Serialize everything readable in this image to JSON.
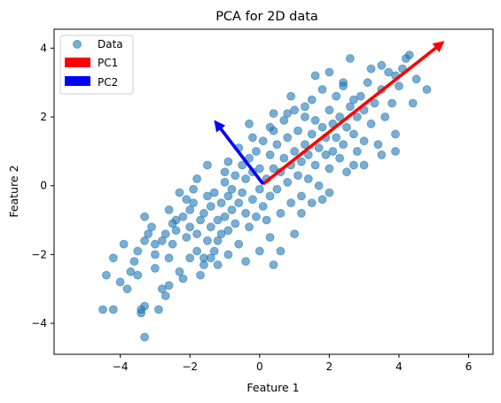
{
  "chart_data": {
    "type": "scatter",
    "title": "PCA for 2D data",
    "xlabel": "Feature 1",
    "ylabel": "Feature 2",
    "xlim": [
      -5.9,
      6.7
    ],
    "ylim": [
      -4.9,
      4.55
    ],
    "xticks": [
      -4,
      -2,
      0,
      2,
      4,
      6
    ],
    "yticks": [
      -4,
      -2,
      0,
      2,
      4
    ],
    "grid": false,
    "legend_position": "top-left",
    "colors": {
      "data": "#1f77b4",
      "pc1": "#ff0000",
      "pc2": "#0000ff"
    },
    "series": [
      {
        "name": "Data",
        "marker": "circle",
        "alpha": 0.6,
        "points": [
          [
            -4.5,
            -3.6
          ],
          [
            -4.2,
            -3.6
          ],
          [
            -4.4,
            -2.6
          ],
          [
            -4.2,
            -2.1
          ],
          [
            -3.9,
            -1.7
          ],
          [
            -3.8,
            -3.0
          ],
          [
            -3.6,
            -2.2
          ],
          [
            -3.5,
            -2.6
          ],
          [
            -3.4,
            -3.6
          ],
          [
            -3.4,
            -3.7
          ],
          [
            -3.3,
            -4.4
          ],
          [
            -3.3,
            -3.5
          ],
          [
            -3.2,
            -1.4
          ],
          [
            -3.3,
            -1.6
          ],
          [
            -3.3,
            -0.9
          ],
          [
            -3.1,
            -1.2
          ],
          [
            -3.0,
            -2.0
          ],
          [
            -2.9,
            -3.6
          ],
          [
            -2.8,
            -1.6
          ],
          [
            -2.8,
            -3.0
          ],
          [
            -2.7,
            -3.2
          ],
          [
            -2.6,
            -2.1
          ],
          [
            -2.5,
            -1.7
          ],
          [
            -2.5,
            -1.1
          ],
          [
            -2.4,
            -1.3
          ],
          [
            -2.3,
            -2.5
          ],
          [
            -2.2,
            -0.9
          ],
          [
            -2.1,
            -1.5
          ],
          [
            -2.0,
            -1.2
          ],
          [
            -2.0,
            -2.1
          ],
          [
            -1.9,
            -0.1
          ],
          [
            -1.9,
            -0.5
          ],
          [
            -1.8,
            -1.4
          ],
          [
            -1.8,
            -1.9
          ],
          [
            -1.7,
            -1.0
          ],
          [
            -1.6,
            -0.8
          ],
          [
            -1.6,
            -2.1
          ],
          [
            -1.5,
            -1.6
          ],
          [
            -1.5,
            -0.3
          ],
          [
            -1.4,
            -1.2
          ],
          [
            -1.4,
            -0.6
          ],
          [
            -1.3,
            -1.9
          ],
          [
            -1.3,
            -0.2
          ],
          [
            -1.2,
            -1.0
          ],
          [
            -1.2,
            -1.6
          ],
          [
            -1.1,
            -0.5
          ],
          [
            -1.1,
            -1.4
          ],
          [
            -1.0,
            0.1
          ],
          [
            -1.0,
            -0.9
          ],
          [
            -0.9,
            -0.3
          ],
          [
            -0.9,
            -1.3
          ],
          [
            -0.8,
            -0.7
          ],
          [
            -0.8,
            -0.1
          ],
          [
            -0.7,
            0.3
          ],
          [
            -0.7,
            -1.1
          ],
          [
            -0.6,
            -0.5
          ],
          [
            -0.6,
            -1.7
          ],
          [
            -0.5,
            0.6
          ],
          [
            -0.5,
            -0.2
          ],
          [
            -0.4,
            -0.8
          ],
          [
            -0.4,
            0.2
          ],
          [
            -0.3,
            -1.2
          ],
          [
            -0.3,
            0.8
          ],
          [
            -0.2,
            -0.4
          ],
          [
            -0.2,
            0.4
          ],
          [
            -0.1,
            -0.9
          ],
          [
            -0.1,
            1.0
          ],
          [
            0.0,
            -0.1
          ],
          [
            0.0,
            0.5
          ],
          [
            0.1,
            -0.6
          ],
          [
            0.1,
            1.3
          ],
          [
            0.2,
            0.2
          ],
          [
            0.2,
            -1.0
          ],
          [
            0.3,
            0.9
          ],
          [
            0.3,
            -0.3
          ],
          [
            0.4,
            0.5
          ],
          [
            0.4,
            1.6
          ],
          [
            0.5,
            -0.1
          ],
          [
            0.5,
            1.2
          ],
          [
            0.6,
            0.4
          ],
          [
            0.6,
            -0.8
          ],
          [
            0.7,
            0.8
          ],
          [
            0.7,
            1.9
          ],
          [
            0.8,
            0.1
          ],
          [
            0.8,
            1.4
          ],
          [
            0.9,
            -0.5
          ],
          [
            0.9,
            0.6
          ],
          [
            1.0,
            1.0
          ],
          [
            1.0,
            2.2
          ],
          [
            1.1,
            0.3
          ],
          [
            1.1,
            1.6
          ],
          [
            1.2,
            0.7
          ],
          [
            1.2,
            -0.3
          ],
          [
            1.3,
            1.2
          ],
          [
            1.3,
            2.0
          ],
          [
            1.4,
            0.9
          ],
          [
            1.4,
            0.2
          ],
          [
            1.5,
            1.5
          ],
          [
            1.5,
            2.5
          ],
          [
            1.6,
            0.6
          ],
          [
            1.6,
            1.9
          ],
          [
            1.7,
            1.1
          ],
          [
            1.7,
            0.0
          ],
          [
            1.8,
            1.7
          ],
          [
            1.8,
            2.8
          ],
          [
            1.9,
            0.9
          ],
          [
            1.9,
            1.4
          ],
          [
            2.0,
            2.2
          ],
          [
            2.0,
            0.5
          ],
          [
            2.1,
            1.8
          ],
          [
            2.1,
            1.0
          ],
          [
            2.2,
            2.6
          ],
          [
            2.2,
            1.4
          ],
          [
            2.3,
            0.8
          ],
          [
            2.3,
            2.0
          ],
          [
            2.4,
            1.2
          ],
          [
            2.4,
            2.9
          ],
          [
            2.5,
            1.7
          ],
          [
            2.5,
            0.4
          ],
          [
            2.6,
            2.3
          ],
          [
            2.6,
            3.7
          ],
          [
            2.7,
            1.5
          ],
          [
            2.7,
            2.5
          ],
          [
            2.8,
            1.0
          ],
          [
            2.8,
            2.0
          ],
          [
            2.9,
            2.6
          ],
          [
            3.0,
            1.3
          ],
          [
            3.0,
            2.2
          ],
          [
            3.1,
            3.0
          ],
          [
            3.2,
            1.8
          ],
          [
            3.3,
            2.4
          ],
          [
            3.4,
            1.2
          ],
          [
            3.5,
            2.8
          ],
          [
            3.6,
            2.0
          ],
          [
            3.7,
            3.3
          ],
          [
            3.8,
            2.4
          ],
          [
            3.9,
            1.5
          ],
          [
            4.0,
            2.9
          ],
          [
            4.1,
            3.4
          ],
          [
            4.2,
            3.7
          ],
          [
            4.3,
            3.8
          ],
          [
            4.4,
            2.4
          ],
          [
            4.5,
            3.1
          ],
          [
            4.8,
            2.8
          ],
          [
            -2.6,
            -0.7
          ],
          [
            -2.3,
            -0.2
          ],
          [
            -2.0,
            -0.7
          ],
          [
            -1.7,
            -2.6
          ],
          [
            -1.4,
            -2.1
          ],
          [
            -0.9,
            0.7
          ],
          [
            -0.6,
            1.1
          ],
          [
            -0.2,
            1.4
          ],
          [
            0.3,
            1.7
          ],
          [
            0.8,
            2.1
          ],
          [
            -0.4,
            -2.2
          ],
          [
            0.3,
            -1.5
          ],
          [
            0.6,
            -1.9
          ],
          [
            1.0,
            -1.4
          ],
          [
            1.5,
            -0.5
          ],
          [
            2.0,
            -0.2
          ],
          [
            2.7,
            0.6
          ],
          [
            3.0,
            0.6
          ],
          [
            3.5,
            0.9
          ],
          [
            3.9,
            1.0
          ],
          [
            -3.0,
            -2.4
          ],
          [
            -2.6,
            -2.9
          ],
          [
            -2.2,
            -2.7
          ],
          [
            -1.6,
            -2.3
          ],
          [
            -1.2,
            -2.3
          ],
          [
            -0.9,
            -2.0
          ],
          [
            0.0,
            -1.9
          ],
          [
            0.4,
            -2.3
          ],
          [
            1.2,
            -0.8
          ],
          [
            1.8,
            -0.4
          ],
          [
            1.3,
            2.3
          ],
          [
            1.6,
            3.2
          ],
          [
            2.0,
            3.3
          ],
          [
            2.4,
            3.0
          ],
          [
            3.2,
            3.4
          ],
          [
            3.5,
            3.5
          ],
          [
            3.9,
            3.2
          ],
          [
            0.9,
            2.6
          ],
          [
            0.4,
            2.1
          ],
          [
            -0.3,
            1.8
          ],
          [
            -1.0,
            0.4
          ],
          [
            -1.5,
            0.6
          ],
          [
            -1.8,
            0.2
          ],
          [
            -2.1,
            -0.4
          ],
          [
            -2.4,
            -1.0
          ],
          [
            -2.7,
            -1.4
          ],
          [
            -3.0,
            -1.7
          ],
          [
            -3.5,
            -1.9
          ],
          [
            -3.7,
            -2.5
          ],
          [
            -4.0,
            -2.8
          ]
        ]
      }
    ],
    "arrows": [
      {
        "name": "PC1",
        "from": [
          0.1,
          0.05
        ],
        "to": [
          5.3,
          4.2
        ]
      },
      {
        "name": "PC2",
        "from": [
          0.1,
          0.05
        ],
        "to": [
          -1.3,
          1.9
        ]
      }
    ],
    "legend": [
      {
        "label": "Data",
        "kind": "marker"
      },
      {
        "label": "PC1",
        "kind": "patch"
      },
      {
        "label": "PC2",
        "kind": "patch"
      }
    ]
  }
}
